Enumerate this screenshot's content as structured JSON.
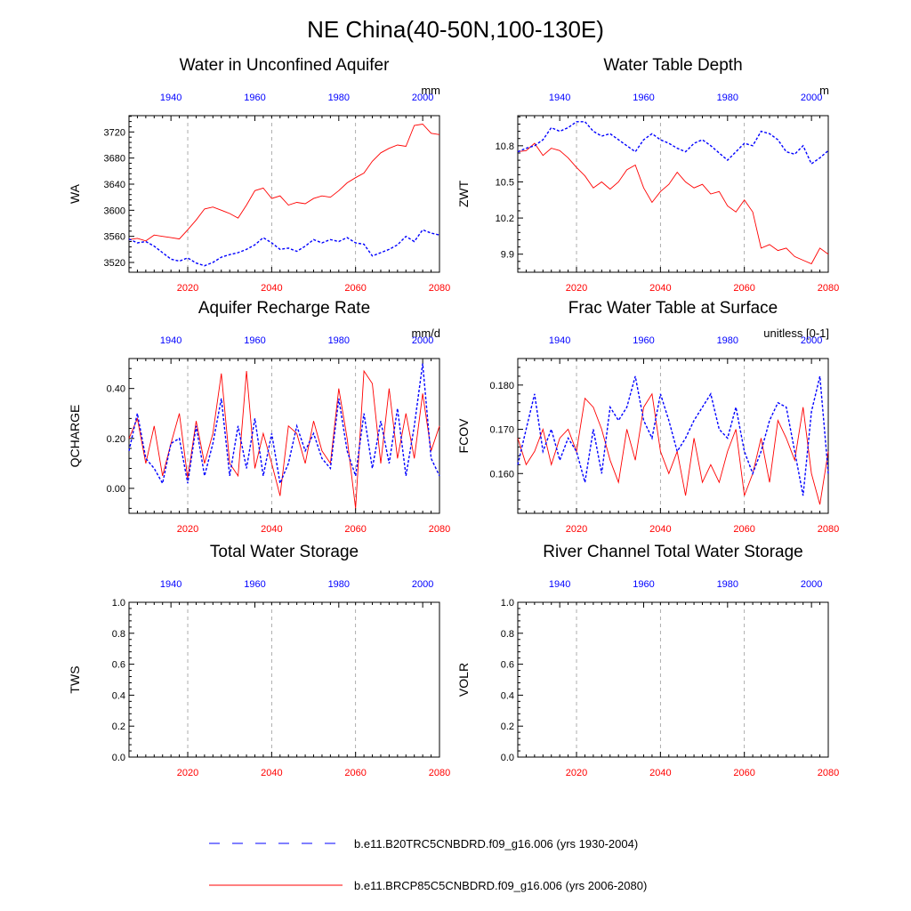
{
  "figure_title": "NE China(40-50N,100-130E)",
  "legend": {
    "items": [
      {
        "label": "b.e11.B20TRC5CNBDRD.f09_g16.006 (yrs 1930-2004)",
        "color": "#0000ff",
        "style": "dashed"
      },
      {
        "label": "b.e11.BRCP85C5CNBDRD.f09_g16.006 (yrs 2006-2080)",
        "color": "#ff0000",
        "style": "solid"
      }
    ]
  },
  "colors": {
    "historical": "#0000ff",
    "future": "#ff0000",
    "grid": "#999999"
  },
  "chart_data": [
    {
      "type": "line",
      "title": "Water in Unconfined Aquifer",
      "units": "mm",
      "ylabel": "WA",
      "ylim": [
        3505,
        3745
      ],
      "yticks": [
        3520,
        3560,
        3600,
        3640,
        3680,
        3720
      ],
      "ytick_labels": [
        "3520",
        "3560",
        "3600",
        "3640",
        "3680",
        "3720"
      ],
      "x_bottom": {
        "range": [
          2006,
          2080
        ],
        "ticks": [
          2020,
          2040,
          2060,
          2080
        ],
        "labels": [
          "2020",
          "2040",
          "2060",
          "2080"
        ]
      },
      "x_top": {
        "range": [
          1930,
          2004
        ],
        "ticks": [
          1940,
          1960,
          1980,
          2000
        ],
        "labels": [
          "1940",
          "1960",
          "1980",
          "2000"
        ]
      },
      "series": [
        {
          "name": "b.e11.BRCP85C5CNBDRD.f09_g16.006",
          "axis": "bottom",
          "style": "solid",
          "color": "#ff0000",
          "x": [
            2006,
            2008,
            2010,
            2012,
            2014,
            2016,
            2018,
            2020,
            2022,
            2024,
            2026,
            2028,
            2030,
            2032,
            2034,
            2036,
            2038,
            2040,
            2042,
            2044,
            2046,
            2048,
            2050,
            2052,
            2054,
            2056,
            2058,
            2060,
            2062,
            2064,
            2066,
            2068,
            2070,
            2072,
            2074,
            2076,
            2078,
            2080
          ],
          "values": [
            3555,
            3557,
            3553,
            3562,
            3560,
            3558,
            3556,
            3570,
            3585,
            3602,
            3605,
            3600,
            3595,
            3588,
            3608,
            3630,
            3634,
            3618,
            3622,
            3608,
            3612,
            3610,
            3618,
            3622,
            3620,
            3630,
            3642,
            3650,
            3657,
            3675,
            3688,
            3695,
            3700,
            3698,
            3730,
            3732,
            3718,
            3716
          ]
        },
        {
          "name": "b.e11.B20TRC5CNBDRD.f09_g16.006",
          "axis": "top",
          "style": "dashed",
          "color": "#0000ff",
          "x": [
            1930,
            1932,
            1934,
            1936,
            1938,
            1940,
            1942,
            1944,
            1946,
            1948,
            1950,
            1952,
            1954,
            1956,
            1958,
            1960,
            1962,
            1964,
            1966,
            1968,
            1970,
            1972,
            1974,
            1976,
            1978,
            1980,
            1982,
            1984,
            1986,
            1988,
            1990,
            1992,
            1994,
            1996,
            1998,
            2000,
            2002,
            2004
          ],
          "values": [
            3556,
            3550,
            3552,
            3545,
            3535,
            3525,
            3522,
            3527,
            3519,
            3515,
            3520,
            3528,
            3532,
            3535,
            3540,
            3547,
            3558,
            3550,
            3540,
            3542,
            3537,
            3545,
            3555,
            3550,
            3555,
            3552,
            3558,
            3550,
            3548,
            3530,
            3535,
            3540,
            3547,
            3560,
            3552,
            3570,
            3565,
            3562
          ]
        }
      ]
    },
    {
      "type": "line",
      "title": "Water Table Depth",
      "units": "m",
      "ylabel": "ZWT",
      "ylim": [
        9.75,
        11.05
      ],
      "yticks": [
        9.9,
        10.2,
        10.5,
        10.8
      ],
      "ytick_labels": [
        "9.9",
        "10.2",
        "10.5",
        "10.8"
      ],
      "x_bottom": {
        "range": [
          2006,
          2080
        ],
        "ticks": [
          2020,
          2040,
          2060,
          2080
        ],
        "labels": [
          "2020",
          "2040",
          "2060",
          "2080"
        ]
      },
      "x_top": {
        "range": [
          1930,
          2004
        ],
        "ticks": [
          1940,
          1960,
          1980,
          2000
        ],
        "labels": [
          "1940",
          "1960",
          "1980",
          "2000"
        ]
      },
      "series": [
        {
          "name": "b.e11.BRCP85C5CNBDRD.f09_g16.006",
          "axis": "bottom",
          "style": "solid",
          "color": "#ff0000",
          "x": [
            2006,
            2008,
            2010,
            2012,
            2014,
            2016,
            2018,
            2020,
            2022,
            2024,
            2026,
            2028,
            2030,
            2032,
            2034,
            2036,
            2038,
            2040,
            2042,
            2044,
            2046,
            2048,
            2050,
            2052,
            2054,
            2056,
            2058,
            2060,
            2062,
            2064,
            2066,
            2068,
            2070,
            2072,
            2074,
            2076,
            2078,
            2080
          ],
          "values": [
            10.75,
            10.76,
            10.82,
            10.72,
            10.78,
            10.76,
            10.7,
            10.62,
            10.55,
            10.45,
            10.5,
            10.44,
            10.5,
            10.6,
            10.64,
            10.45,
            10.33,
            10.42,
            10.48,
            10.58,
            10.5,
            10.45,
            10.48,
            10.4,
            10.42,
            10.3,
            10.25,
            10.35,
            10.25,
            9.95,
            9.98,
            9.93,
            9.95,
            9.88,
            9.85,
            9.82,
            9.95,
            9.9
          ]
        },
        {
          "name": "b.e11.B20TRC5CNBDRD.f09_g16.006",
          "axis": "top",
          "style": "dashed",
          "color": "#0000ff",
          "x": [
            1930,
            1932,
            1934,
            1936,
            1938,
            1940,
            1942,
            1944,
            1946,
            1948,
            1950,
            1952,
            1954,
            1956,
            1958,
            1960,
            1962,
            1964,
            1966,
            1968,
            1970,
            1972,
            1974,
            1976,
            1978,
            1980,
            1982,
            1984,
            1986,
            1988,
            1990,
            1992,
            1994,
            1996,
            1998,
            2000,
            2002,
            2004
          ],
          "values": [
            10.75,
            10.78,
            10.8,
            10.85,
            10.95,
            10.92,
            10.95,
            11.0,
            11.0,
            10.92,
            10.88,
            10.9,
            10.85,
            10.8,
            10.75,
            10.85,
            10.9,
            10.85,
            10.82,
            10.78,
            10.75,
            10.82,
            10.85,
            10.8,
            10.74,
            10.68,
            10.75,
            10.82,
            10.8,
            10.92,
            10.9,
            10.85,
            10.75,
            10.73,
            10.8,
            10.65,
            10.7,
            10.76
          ]
        }
      ]
    },
    {
      "type": "line",
      "title": "Aquifer Recharge Rate",
      "units": "mm/d",
      "ylabel": "QCHARGE",
      "ylim": [
        -0.1,
        0.52
      ],
      "yticks": [
        0.0,
        0.2,
        0.4
      ],
      "ytick_labels": [
        "0.00",
        "0.20",
        "0.40"
      ],
      "x_bottom": {
        "range": [
          2006,
          2080
        ],
        "ticks": [
          2020,
          2040,
          2060,
          2080
        ],
        "labels": [
          "2020",
          "2040",
          "2060",
          "2080"
        ]
      },
      "x_top": {
        "range": [
          1930,
          2004
        ],
        "ticks": [
          1940,
          1960,
          1980,
          2000
        ],
        "labels": [
          "1940",
          "1960",
          "1980",
          "2000"
        ]
      },
      "series": [
        {
          "name": "b.e11.BRCP85C5CNBDRD.f09_g16.006",
          "axis": "bottom",
          "style": "solid",
          "color": "#ff0000",
          "x": [
            2006,
            2008,
            2010,
            2012,
            2014,
            2016,
            2018,
            2020,
            2022,
            2024,
            2026,
            2028,
            2030,
            2032,
            2034,
            2036,
            2038,
            2040,
            2042,
            2044,
            2046,
            2048,
            2050,
            2052,
            2054,
            2056,
            2058,
            2060,
            2062,
            2064,
            2066,
            2068,
            2070,
            2072,
            2074,
            2076,
            2078,
            2080
          ],
          "values": [
            0.2,
            0.28,
            0.1,
            0.25,
            0.05,
            0.18,
            0.3,
            0.04,
            0.27,
            0.1,
            0.22,
            0.46,
            0.1,
            0.05,
            0.47,
            0.08,
            0.22,
            0.1,
            -0.03,
            0.25,
            0.22,
            0.1,
            0.27,
            0.15,
            0.1,
            0.4,
            0.2,
            -0.08,
            0.47,
            0.42,
            0.1,
            0.4,
            0.12,
            0.3,
            0.12,
            0.38,
            0.15,
            0.25
          ]
        },
        {
          "name": "b.e11.B20TRC5CNBDRD.f09_g16.006",
          "axis": "top",
          "style": "dashed",
          "color": "#0000ff",
          "x": [
            1930,
            1932,
            1934,
            1936,
            1938,
            1940,
            1942,
            1944,
            1946,
            1948,
            1950,
            1952,
            1954,
            1956,
            1958,
            1960,
            1962,
            1964,
            1966,
            1968,
            1970,
            1972,
            1974,
            1976,
            1978,
            1980,
            1982,
            1984,
            1986,
            1988,
            1990,
            1992,
            1994,
            1996,
            1998,
            2000,
            2002,
            2004
          ],
          "values": [
            0.15,
            0.3,
            0.12,
            0.08,
            0.02,
            0.18,
            0.2,
            0.02,
            0.25,
            0.05,
            0.18,
            0.36,
            0.05,
            0.25,
            0.08,
            0.28,
            0.05,
            0.22,
            0.02,
            0.1,
            0.25,
            0.15,
            0.22,
            0.12,
            0.08,
            0.36,
            0.15,
            0.05,
            0.3,
            0.08,
            0.27,
            0.1,
            0.32,
            0.05,
            0.25,
            0.5,
            0.12,
            0.05
          ]
        }
      ]
    },
    {
      "type": "line",
      "title": "Frac Water Table at Surface",
      "units": "unitless [0-1]",
      "ylabel": "FCOV",
      "ylim": [
        0.151,
        0.186
      ],
      "yticks": [
        0.16,
        0.17,
        0.18
      ],
      "ytick_labels": [
        "0.160",
        "0.170",
        "0.180"
      ],
      "x_bottom": {
        "range": [
          2006,
          2080
        ],
        "ticks": [
          2020,
          2040,
          2060,
          2080
        ],
        "labels": [
          "2020",
          "2040",
          "2060",
          "2080"
        ]
      },
      "x_top": {
        "range": [
          1930,
          2004
        ],
        "ticks": [
          1940,
          1960,
          1980,
          2000
        ],
        "labels": [
          "1940",
          "1960",
          "1980",
          "2000"
        ]
      },
      "series": [
        {
          "name": "b.e11.BRCP85C5CNBDRD.f09_g16.006",
          "axis": "bottom",
          "style": "solid",
          "color": "#ff0000",
          "x": [
            2006,
            2008,
            2010,
            2012,
            2014,
            2016,
            2018,
            2020,
            2022,
            2024,
            2026,
            2028,
            2030,
            2032,
            2034,
            2036,
            2038,
            2040,
            2042,
            2044,
            2046,
            2048,
            2050,
            2052,
            2054,
            2056,
            2058,
            2060,
            2062,
            2064,
            2066,
            2068,
            2070,
            2072,
            2074,
            2076,
            2078,
            2080
          ],
          "values": [
            0.168,
            0.162,
            0.165,
            0.17,
            0.162,
            0.168,
            0.17,
            0.165,
            0.177,
            0.175,
            0.17,
            0.163,
            0.158,
            0.17,
            0.163,
            0.175,
            0.178,
            0.165,
            0.16,
            0.165,
            0.155,
            0.168,
            0.158,
            0.162,
            0.158,
            0.165,
            0.17,
            0.155,
            0.16,
            0.168,
            0.158,
            0.172,
            0.168,
            0.163,
            0.175,
            0.16,
            0.153,
            0.165
          ]
        },
        {
          "name": "b.e11.B20TRC5CNBDRD.f09_g16.006",
          "axis": "top",
          "style": "dashed",
          "color": "#0000ff",
          "x": [
            1930,
            1932,
            1934,
            1936,
            1938,
            1940,
            1942,
            1944,
            1946,
            1948,
            1950,
            1952,
            1954,
            1956,
            1958,
            1960,
            1962,
            1964,
            1966,
            1968,
            1970,
            1972,
            1974,
            1976,
            1978,
            1980,
            1982,
            1984,
            1986,
            1988,
            1990,
            1992,
            1994,
            1996,
            1998,
            2000,
            2002,
            2004
          ],
          "values": [
            0.162,
            0.17,
            0.178,
            0.165,
            0.17,
            0.163,
            0.168,
            0.165,
            0.158,
            0.17,
            0.16,
            0.175,
            0.172,
            0.175,
            0.182,
            0.172,
            0.168,
            0.178,
            0.172,
            0.165,
            0.168,
            0.172,
            0.175,
            0.178,
            0.17,
            0.168,
            0.175,
            0.165,
            0.16,
            0.165,
            0.172,
            0.176,
            0.175,
            0.165,
            0.155,
            0.174,
            0.182,
            0.16
          ]
        }
      ]
    },
    {
      "type": "line",
      "title": "Total Water Storage",
      "units": "",
      "ylabel": "TWS",
      "ylim": [
        0.0,
        1.0
      ],
      "yticks": [
        0.0,
        0.2,
        0.4,
        0.6,
        0.8,
        1.0
      ],
      "ytick_labels": [
        "0.0",
        "0.2",
        "0.4",
        "0.6",
        "0.8",
        "1.0"
      ],
      "x_bottom": {
        "range": [
          2006,
          2080
        ],
        "ticks": [
          2020,
          2040,
          2060,
          2080
        ],
        "labels": [
          "2020",
          "2040",
          "2060",
          "2080"
        ]
      },
      "x_top": {
        "range": [
          1930,
          2004
        ],
        "ticks": [
          1940,
          1960,
          1980,
          2000
        ],
        "labels": [
          "1940",
          "1960",
          "1980",
          "2000"
        ]
      },
      "series": []
    },
    {
      "type": "line",
      "title": "River Channel Total Water Storage",
      "units": "",
      "ylabel": "VOLR",
      "ylim": [
        0.0,
        1.0
      ],
      "yticks": [
        0.0,
        0.2,
        0.4,
        0.6,
        0.8,
        1.0
      ],
      "ytick_labels": [
        "0.0",
        "0.2",
        "0.4",
        "0.6",
        "0.8",
        "1.0"
      ],
      "x_bottom": {
        "range": [
          2006,
          2080
        ],
        "ticks": [
          2020,
          2040,
          2060,
          2080
        ],
        "labels": [
          "2020",
          "2040",
          "2060",
          "2080"
        ]
      },
      "x_top": {
        "range": [
          1930,
          2004
        ],
        "ticks": [
          1940,
          1960,
          1980,
          2000
        ],
        "labels": [
          "1940",
          "1960",
          "1980",
          "2000"
        ]
      },
      "series": []
    }
  ]
}
